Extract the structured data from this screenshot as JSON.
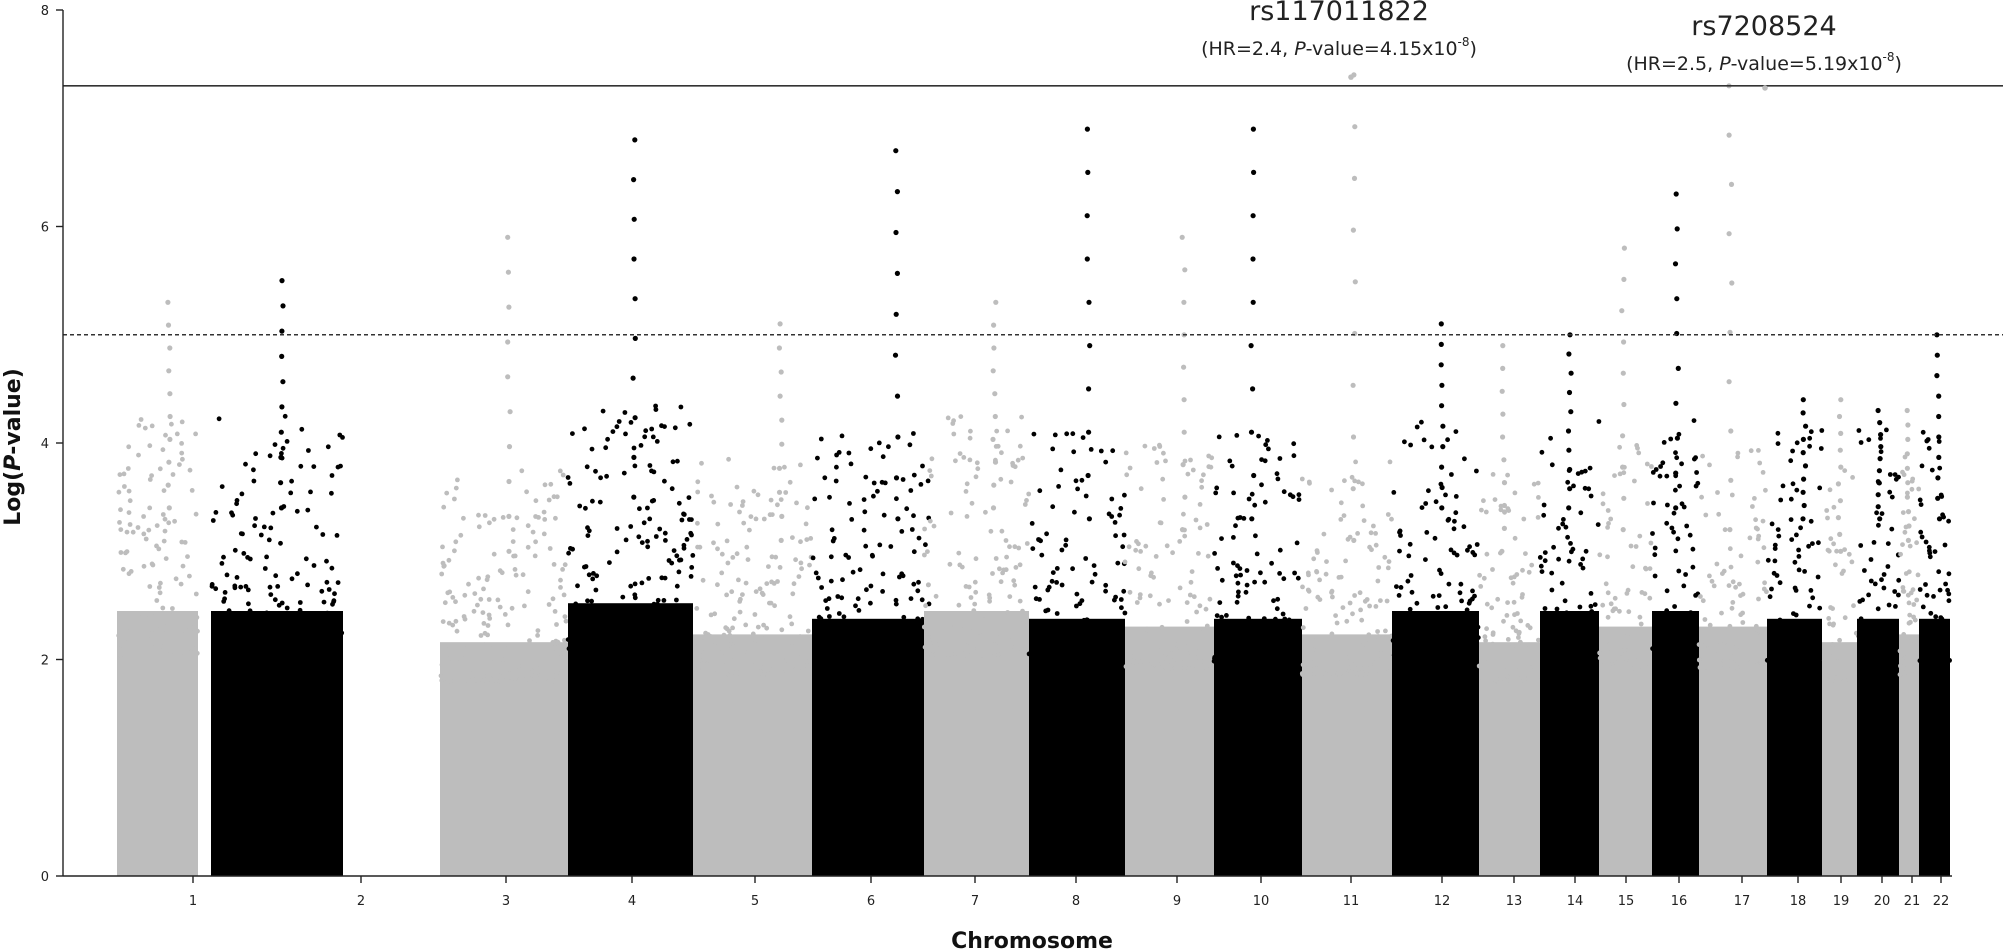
{
  "chart_data": {
    "type": "scatter",
    "subtype": "manhattan",
    "xlabel": "Chromosome",
    "ylabel": "Log(P-value)",
    "ylabel_prefix": "Log(",
    "ylabel_italic": "P",
    "ylabel_suffix": "-value)",
    "ylim": [
      0,
      8
    ],
    "yticks": [
      "0",
      "2",
      "4",
      "6",
      "8"
    ],
    "grid": false,
    "legend": "none",
    "colors": {
      "odd_chromosomes": "#bdbdbd",
      "even_chromosomes": "#000000",
      "threshold": "#333333"
    },
    "genome_wide_significance": 7.3,
    "suggestive_threshold": 5.0,
    "chromosomes": [
      {
        "label": "1",
        "color": "gray",
        "band_max": 3.4,
        "peak": 5.3
      },
      {
        "label": "2",
        "color": "black",
        "band_max": 3.4,
        "peak": 5.5
      },
      {
        "label": "3",
        "color": "gray",
        "band_max": 3.0,
        "peak": 5.9
      },
      {
        "label": "4",
        "color": "black",
        "band_max": 3.5,
        "peak": 6.8
      },
      {
        "label": "5",
        "color": "gray",
        "band_max": 3.1,
        "peak": 5.1
      },
      {
        "label": "6",
        "color": "black",
        "band_max": 3.3,
        "peak": 6.7
      },
      {
        "label": "7",
        "color": "gray",
        "band_max": 3.4,
        "peak": 5.3
      },
      {
        "label": "8",
        "color": "black",
        "band_max": 3.3,
        "peak": 6.9
      },
      {
        "label": "9",
        "color": "gray",
        "band_max": 3.2,
        "peak": 5.9
      },
      {
        "label": "10",
        "color": "black",
        "band_max": 3.3,
        "peak": 6.9
      },
      {
        "label": "11",
        "color": "gray",
        "band_max": 3.1,
        "peak": 7.4
      },
      {
        "label": "12",
        "color": "black",
        "band_max": 3.4,
        "peak": 5.1
      },
      {
        "label": "13",
        "color": "gray",
        "band_max": 3.0,
        "peak": 4.9
      },
      {
        "label": "14",
        "color": "black",
        "band_max": 3.4,
        "peak": 5.0
      },
      {
        "label": "15",
        "color": "gray",
        "band_max": 3.2,
        "peak": 5.8
      },
      {
        "label": "16",
        "color": "black",
        "band_max": 3.4,
        "peak": 6.3
      },
      {
        "label": "17",
        "color": "gray",
        "band_max": 3.2,
        "peak": 7.3
      },
      {
        "label": "18",
        "color": "black",
        "band_max": 3.3,
        "peak": 4.4
      },
      {
        "label": "19",
        "color": "gray",
        "band_max": 3.0,
        "peak": 4.4
      },
      {
        "label": "20",
        "color": "black",
        "band_max": 3.3,
        "peak": 4.3
      },
      {
        "label": "21",
        "color": "gray",
        "band_max": 3.1,
        "peak": 4.3
      },
      {
        "label": "22",
        "color": "black",
        "band_max": 3.3,
        "peak": 5.0
      }
    ],
    "annotations": [
      {
        "snp": "rs117011822",
        "hr_text": "(HR=2.4, ",
        "p_italic": "P",
        "p_text": "-value=4.15x10",
        "exp": "-8",
        "close": ")",
        "chromosome": "11",
        "y": 7.38
      },
      {
        "snp": "rs7208524",
        "hr_text": "(HR=2.5, ",
        "p_italic": "P",
        "p_text": "-value=5.19x10",
        "exp": "-8",
        "close": ")",
        "chromosome": "17",
        "y": 7.28
      }
    ]
  }
}
